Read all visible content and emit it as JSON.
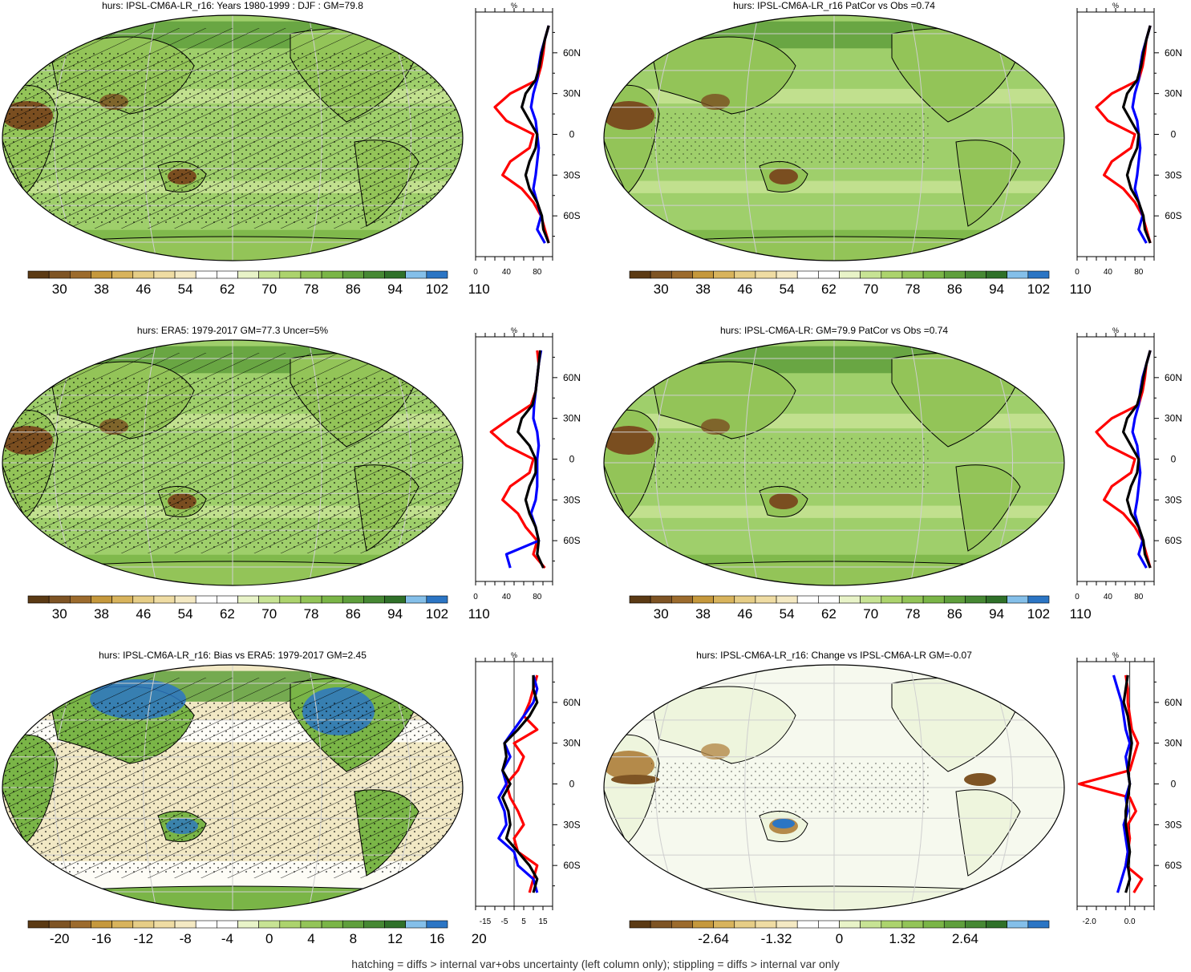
{
  "footer": "hatching = diffs > internal var+obs uncertainty (left column only); stippling = diffs > internal var only",
  "colors": {
    "scale": [
      "#5b3a14",
      "#7e5424",
      "#9c6b2d",
      "#c5983c",
      "#d8b35c",
      "#e6cd86",
      "#efdca3",
      "#f4e9c3",
      "#ffffff",
      "#ffffff",
      "#e8f3c8",
      "#c7e394",
      "#acd36d",
      "#93c458",
      "#7ab547",
      "#5f9f3c",
      "#468833",
      "#2f7029",
      "#84bfe9",
      "#2b75c4"
    ],
    "ocean": "#9fcf6b",
    "land_dry": "#7a4e20",
    "obs_line": "#ff0000",
    "model_line": "#0000ff",
    "ens_line": "#000000"
  },
  "panels": [
    {
      "title": "hurs: IPSL-CM6A-LR_r16: Years 1980-1999 : DJF : GM=79.8",
      "colorbar_labels": [
        "30",
        "38",
        "46",
        "54",
        "62",
        "70",
        "78",
        "86",
        "94",
        "102",
        "110"
      ],
      "profile_unit": "%",
      "profile_xticks": [
        "0",
        "40",
        "80"
      ],
      "profile_yticks": [
        "60N",
        "30N",
        "0",
        "30S",
        "60S"
      ],
      "hatching": true,
      "stippling": true
    },
    {
      "title": "hurs: IPSL-CM6A-LR_r16 PatCor vs Obs =0.74",
      "colorbar_labels": [
        "30",
        "38",
        "46",
        "54",
        "62",
        "70",
        "78",
        "86",
        "94",
        "102",
        "110"
      ],
      "profile_unit": "%",
      "profile_xticks": [
        "0",
        "40",
        "80"
      ],
      "profile_yticks": [
        "60N",
        "30N",
        "0",
        "30S",
        "60S"
      ],
      "hatching": false,
      "stippling": true
    },
    {
      "title": "hurs: ERA5: 1979-2017 GM=77.3 Uncer=5%",
      "colorbar_labels": [
        "30",
        "38",
        "46",
        "54",
        "62",
        "70",
        "78",
        "86",
        "94",
        "102",
        "110"
      ],
      "profile_unit": "%",
      "profile_xticks": [
        "0",
        "40",
        "80"
      ],
      "profile_yticks": [
        "60N",
        "30N",
        "0",
        "30S",
        "60S"
      ],
      "hatching": true,
      "stippling": true
    },
    {
      "title": "hurs: IPSL-CM6A-LR: GM=79.9 PatCor vs Obs =0.74",
      "colorbar_labels": [
        "30",
        "38",
        "46",
        "54",
        "62",
        "70",
        "78",
        "86",
        "94",
        "102",
        "110"
      ],
      "profile_unit": "%",
      "profile_xticks": [
        "0",
        "40",
        "80"
      ],
      "profile_yticks": [
        "60N",
        "30N",
        "0",
        "30S",
        "60S"
      ],
      "hatching": false,
      "stippling": true
    },
    {
      "title": "hurs: IPSL-CM6A-LR_r16: Bias vs ERA5: 1979-2017 GM=2.45",
      "colorbar_labels": [
        "-20",
        "-16",
        "-12",
        "-8",
        "-4",
        "0",
        "4",
        "8",
        "12",
        "16",
        "20"
      ],
      "profile_unit": "%",
      "profile_xticks": [
        "-15",
        "-5",
        "5",
        "15"
      ],
      "profile_yticks": [
        "60N",
        "30N",
        "0",
        "30S",
        "60S"
      ],
      "hatching": true,
      "stippling": true
    },
    {
      "title": "hurs: IPSL-CM6A-LR_r16: Change vs IPSL-CM6A-LR GM=-0.07",
      "colorbar_labels": [
        "-2.64",
        "-1.32",
        "0",
        "1.32",
        "2.64"
      ],
      "profile_unit": "%",
      "profile_xticks": [
        "-2.0",
        "0.0"
      ],
      "profile_yticks": [
        "60N",
        "30N",
        "0",
        "30S",
        "60S"
      ],
      "hatching": false,
      "stippling": true
    }
  ],
  "chart_data": [
    {
      "type": "line",
      "title": "hurs: IPSL-CM6A-LR_r16: Years 1980-1999 : DJF : GM=79.8",
      "xlabel": "%",
      "xlim": [
        0,
        100
      ],
      "ylim": [
        -90,
        90
      ],
      "y_lat": [
        80,
        70,
        60,
        50,
        40,
        30,
        20,
        10,
        0,
        -10,
        -20,
        -30,
        -40,
        -50,
        -60,
        -70,
        -80
      ],
      "series": [
        {
          "color": "red",
          "values": [
            95,
            90,
            88,
            85,
            80,
            45,
            25,
            40,
            75,
            70,
            45,
            35,
            60,
            75,
            85,
            90,
            95
          ]
        },
        {
          "color": "blue",
          "values": [
            95,
            90,
            85,
            82,
            80,
            75,
            72,
            78,
            80,
            82,
            80,
            78,
            75,
            80,
            85,
            80,
            90
          ]
        },
        {
          "color": "black",
          "values": [
            95,
            90,
            86,
            83,
            78,
            65,
            60,
            70,
            80,
            78,
            70,
            65,
            70,
            80,
            86,
            88,
            95
          ]
        }
      ]
    },
    {
      "type": "line",
      "title": "hurs: IPSL-CM6A-LR_r16 PatCor vs Obs =0.74",
      "xlabel": "%",
      "xlim": [
        0,
        100
      ],
      "ylim": [
        -90,
        90
      ],
      "y_lat": [
        80,
        70,
        60,
        50,
        40,
        30,
        20,
        10,
        0,
        -10,
        -20,
        -30,
        -40,
        -50,
        -60,
        -70,
        -80
      ],
      "series": [
        {
          "color": "red",
          "values": [
            95,
            90,
            88,
            85,
            80,
            45,
            25,
            40,
            75,
            70,
            45,
            35,
            60,
            75,
            85,
            90,
            95
          ]
        },
        {
          "color": "blue",
          "values": [
            95,
            90,
            85,
            82,
            80,
            75,
            72,
            78,
            80,
            82,
            80,
            78,
            75,
            80,
            85,
            80,
            90
          ]
        },
        {
          "color": "black",
          "values": [
            95,
            90,
            86,
            83,
            78,
            65,
            60,
            70,
            80,
            78,
            70,
            65,
            70,
            80,
            86,
            88,
            95
          ]
        }
      ]
    },
    {
      "type": "line",
      "title": "hurs: ERA5: 1979-2017 GM=77.3 Uncer=5%",
      "xlabel": "%",
      "xlim": [
        0,
        100
      ],
      "ylim": [
        -90,
        90
      ],
      "y_lat": [
        80,
        70,
        60,
        50,
        40,
        30,
        20,
        10,
        0,
        -10,
        -20,
        -30,
        -40,
        -50,
        -60,
        -70,
        -80
      ],
      "series": [
        {
          "color": "red",
          "values": [
            80,
            82,
            80,
            78,
            72,
            45,
            20,
            40,
            75,
            70,
            45,
            35,
            55,
            65,
            80,
            75,
            90
          ]
        },
        {
          "color": "blue",
          "values": [
            85,
            82,
            80,
            78,
            76,
            75,
            80,
            82,
            80,
            80,
            80,
            78,
            72,
            78,
            82,
            40,
            45
          ]
        },
        {
          "color": "black",
          "values": [
            84,
            82,
            80,
            78,
            74,
            60,
            55,
            70,
            78,
            78,
            70,
            65,
            70,
            78,
            82,
            80,
            88
          ]
        }
      ]
    },
    {
      "type": "line",
      "title": "hurs: IPSL-CM6A-LR: GM=79.9 PatCor vs Obs =0.74",
      "xlabel": "%",
      "xlim": [
        0,
        100
      ],
      "ylim": [
        -90,
        90
      ],
      "y_lat": [
        80,
        70,
        60,
        50,
        40,
        30,
        20,
        10,
        0,
        -10,
        -20,
        -30,
        -40,
        -50,
        -60,
        -70,
        -80
      ],
      "series": [
        {
          "color": "red",
          "values": [
            95,
            90,
            88,
            85,
            80,
            45,
            25,
            40,
            75,
            70,
            45,
            35,
            60,
            75,
            85,
            90,
            95
          ]
        },
        {
          "color": "blue",
          "values": [
            95,
            90,
            85,
            82,
            80,
            75,
            72,
            78,
            80,
            82,
            80,
            78,
            75,
            80,
            85,
            80,
            90
          ]
        },
        {
          "color": "black",
          "values": [
            95,
            90,
            86,
            83,
            78,
            65,
            60,
            70,
            80,
            78,
            70,
            65,
            70,
            80,
            86,
            88,
            95
          ]
        }
      ]
    },
    {
      "type": "line",
      "title": "hurs: IPSL-CM6A-LR_r16: Bias vs ERA5: 1979-2017 GM=2.45",
      "xlabel": "%",
      "xlim": [
        -20,
        20
      ],
      "ylim": [
        -90,
        90
      ],
      "y_lat": [
        80,
        70,
        60,
        50,
        40,
        30,
        20,
        10,
        0,
        -10,
        -20,
        -30,
        -40,
        -50,
        -60,
        -70,
        -80
      ],
      "series": [
        {
          "color": "red",
          "values": [
            12,
            10,
            8,
            5,
            12,
            0,
            5,
            2,
            -4,
            -2,
            2,
            5,
            0,
            2,
            12,
            10,
            8
          ]
        },
        {
          "color": "blue",
          "values": [
            10,
            12,
            10,
            5,
            0,
            -5,
            -2,
            -6,
            -4,
            -8,
            -5,
            -4,
            -8,
            0,
            2,
            10,
            12
          ]
        },
        {
          "color": "black",
          "values": [
            10,
            10,
            12,
            8,
            2,
            -5,
            -4,
            -6,
            -2,
            -6,
            -3,
            -2,
            -4,
            2,
            8,
            12,
            10
          ]
        }
      ]
    },
    {
      "type": "line",
      "title": "hurs: IPSL-CM6A-LR_r16: Change vs IPSL-CM6A-LR GM=-0.07",
      "xlabel": "%",
      "xlim": [
        -2.6,
        1.2
      ],
      "ylim": [
        -90,
        90
      ],
      "y_lat": [
        80,
        70,
        60,
        50,
        40,
        30,
        20,
        10,
        0,
        -10,
        -20,
        -30,
        -40,
        -50,
        -60,
        -70,
        -80
      ],
      "series": [
        {
          "color": "red",
          "values": [
            -0.2,
            -0.1,
            -0.1,
            0.0,
            0.1,
            0.4,
            0.2,
            0.0,
            -2.5,
            0.0,
            0.3,
            -0.1,
            0.0,
            -0.1,
            -0.2,
            0.6,
            0.2
          ]
        },
        {
          "color": "blue",
          "values": [
            -0.8,
            -0.6,
            -0.4,
            -0.3,
            -0.2,
            0.0,
            -0.2,
            -0.1,
            0.0,
            -0.2,
            -0.1,
            -0.3,
            -0.2,
            -0.1,
            -0.2,
            -0.4,
            -0.6
          ]
        },
        {
          "color": "black",
          "values": [
            -0.1,
            -0.2,
            -0.3,
            -0.1,
            0.0,
            0.1,
            0.0,
            -0.1,
            0.0,
            -0.1,
            -0.2,
            -0.2,
            -0.1,
            0.0,
            -0.1,
            0.0,
            -0.2
          ]
        }
      ]
    }
  ]
}
